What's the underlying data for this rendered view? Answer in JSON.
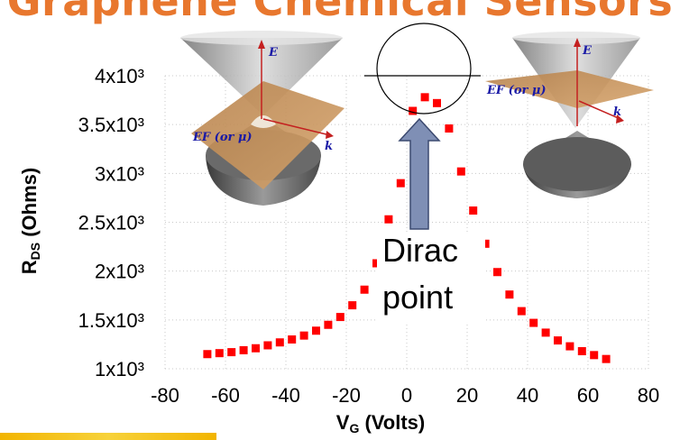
{
  "slide": {
    "title": "Graphene Chemical Sensors"
  },
  "colors": {
    "title": "#e8772e",
    "markers": "#ff0000",
    "arrow": "#7f8fb5",
    "cone_plane": "#c9935a"
  },
  "inset_left": {
    "e_label": "E",
    "ef_label": "EF (or μ)",
    "k_label": "k"
  },
  "inset_right": {
    "e_label": "E",
    "ef_label": "EF (or μ)",
    "k_label": "k"
  },
  "annotation": {
    "line1": "Dirac",
    "line2": "point"
  },
  "chart_data": {
    "type": "scatter",
    "xlabel": "VG (Volts)",
    "ylabel": "RDS (Ohms)",
    "xlim": [
      -80,
      80
    ],
    "ylim": [
      1000,
      4000
    ],
    "xticks": [
      "-80",
      "-60",
      "-40",
      "-20",
      "0",
      "20",
      "40",
      "60",
      "80"
    ],
    "yticks": [
      "1x10³",
      "1.5x10³",
      "2x10³",
      "2.5x10³",
      "3x10³",
      "3.5x10³",
      "4x10³"
    ],
    "marker": "square",
    "grid": "dotted",
    "series": [
      {
        "x": [
          -66,
          -62,
          -58,
          -54,
          -50,
          -46,
          -42,
          -38,
          -34,
          -30,
          -26,
          -22,
          -18,
          -14,
          -10,
          -6,
          -2,
          2,
          6,
          10,
          14,
          18,
          22,
          26,
          30,
          34,
          38,
          42,
          46,
          50,
          54,
          58,
          62,
          66
        ],
        "y": [
          1150,
          1160,
          1170,
          1190,
          1210,
          1240,
          1270,
          1300,
          1340,
          1390,
          1450,
          1530,
          1650,
          1810,
          2080,
          2530,
          2900,
          3640,
          3780,
          3720,
          3460,
          3020,
          2620,
          2280,
          1990,
          1760,
          1590,
          1470,
          1370,
          1290,
          1230,
          1180,
          1140,
          1100
        ]
      }
    ]
  }
}
